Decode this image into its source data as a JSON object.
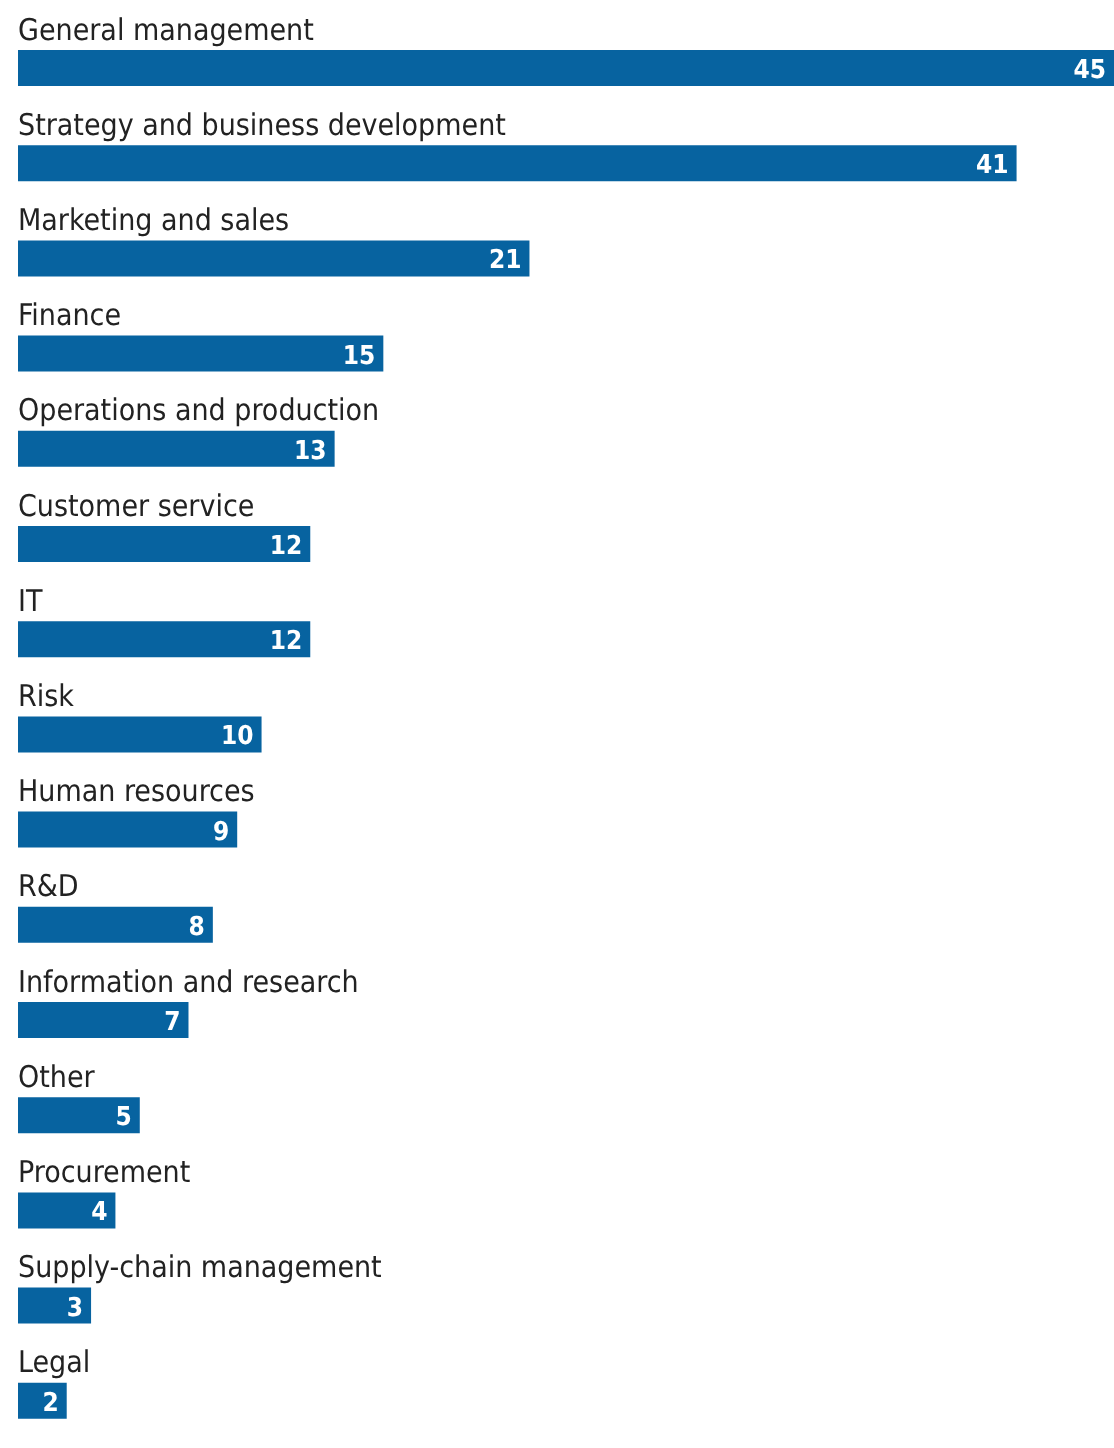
{
  "chart_data": {
    "type": "bar",
    "orientation": "horizontal",
    "categories": [
      "General management",
      "Strategy and business development",
      "Marketing and sales",
      "Finance",
      "Operations and production",
      "Customer service",
      "IT",
      "Risk",
      "Human resources",
      "R&D",
      "Information and research",
      "Other",
      "Procurement",
      "Supply-chain management",
      "Legal"
    ],
    "values": [
      45,
      41,
      21,
      15,
      13,
      12,
      12,
      10,
      9,
      8,
      7,
      5,
      4,
      3,
      2
    ],
    "color": "#0763a0",
    "data_labels": true,
    "grid": false,
    "legend": false
  }
}
